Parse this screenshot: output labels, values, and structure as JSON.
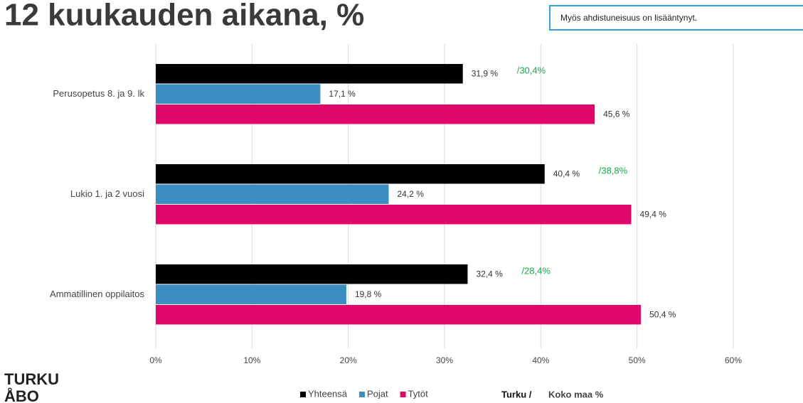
{
  "chart_data": {
    "type": "hbar",
    "title": "12 kuukauden aikana, %",
    "note_box": "Myös ahdistuneisuus on lisääntynyt.",
    "logo": [
      "TURKU",
      "ÅBO"
    ],
    "categories": [
      "Perusopetus 8. ja 9. lk",
      "Lukio 1. ja 2 vuosi",
      "Ammatillinen oppilaitos"
    ],
    "series": [
      {
        "name": "Yhteensä",
        "color": "#000000",
        "values": [
          31.9,
          40.4,
          32.4
        ],
        "value_labels": [
          "31,9 %",
          "40,4 %",
          "32,4 %"
        ]
      },
      {
        "name": "Pojat",
        "color": "#3a8fc0",
        "values": [
          17.1,
          24.2,
          19.8
        ],
        "value_labels": [
          "17,1 %",
          "24,2 %",
          "19,8 %"
        ]
      },
      {
        "name": "Tytöt",
        "color": "#e0086a",
        "values": [
          45.6,
          49.4,
          50.4
        ],
        "value_labels": [
          "45,6 %",
          "49,4 %",
          "50,4 %"
        ]
      }
    ],
    "annotations": [
      "/30,4%",
      "/38,8%",
      "/28,4%"
    ],
    "annotation_color": "#1aa84a",
    "key_note": [
      "Turku /",
      "Koko maa %"
    ],
    "xlim": [
      0,
      60
    ],
    "xticks": [
      {
        "value": 0,
        "label": "0%"
      },
      {
        "value": 10,
        "label": "10%"
      },
      {
        "value": 20,
        "label": "20%"
      },
      {
        "value": 30,
        "label": "30%"
      },
      {
        "value": 40,
        "label": "40%"
      },
      {
        "value": 50,
        "label": "50%"
      },
      {
        "value": 60,
        "label": "60%"
      }
    ],
    "grid": true
  }
}
